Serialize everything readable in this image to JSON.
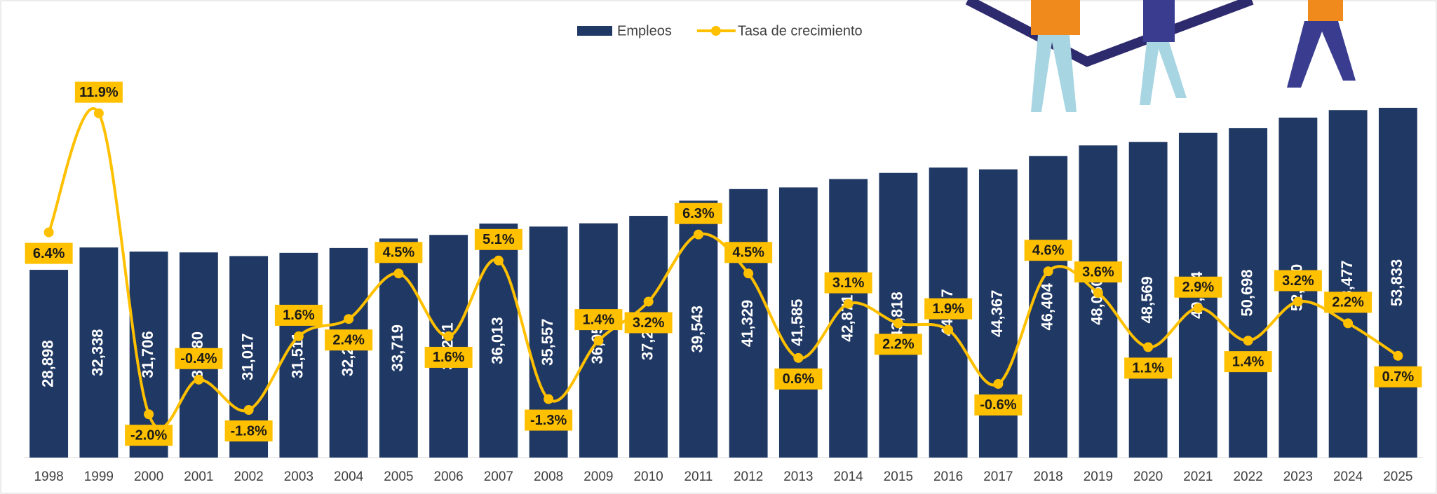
{
  "chart_data": {
    "type": "bar-line",
    "categories": [
      "1998",
      "1999",
      "2000",
      "2001",
      "2002",
      "2003",
      "2004",
      "2005",
      "2006",
      "2007",
      "2008",
      "2009",
      "2010",
      "2011",
      "2012",
      "2013",
      "2014",
      "2015",
      "2016",
      "2017",
      "2018",
      "2019",
      "2020",
      "2021",
      "2022",
      "2023",
      "2024",
      "2025"
    ],
    "series": [
      {
        "name": "Empleos",
        "type": "bar",
        "color": "#1f3864",
        "values": [
          28898,
          32338,
          31706,
          31580,
          31017,
          31511,
          32262,
          33719,
          34271,
          36013,
          35557,
          36058,
          37205,
          39543,
          41329,
          41585,
          42871,
          43818,
          44637,
          44367,
          46404,
          48060,
          48569,
          49974,
          50698,
          52330,
          53477,
          53833
        ],
        "value_labels": [
          "28,898",
          "32,338",
          "31,706",
          "31,580",
          "31,017",
          "31,511",
          "32,262",
          "33,719",
          "34,271",
          "36,013",
          "35,557",
          "36,058",
          "37,205",
          "39,543",
          "41,329",
          "41,585",
          "42,871",
          "43,818",
          "44,637",
          "44,367",
          "46,404",
          "48,060",
          "48,569",
          "49,974",
          "50,698",
          "52,330",
          "53,477",
          "53,833"
        ]
      },
      {
        "name": "Tasa de crecimiento",
        "type": "line",
        "axis": "y2",
        "color": "#ffc000",
        "values": [
          6.4,
          11.9,
          -2.0,
          -0.4,
          -1.8,
          1.6,
          2.4,
          4.5,
          1.6,
          5.1,
          -1.3,
          1.4,
          3.2,
          6.3,
          4.5,
          0.6,
          3.1,
          2.2,
          1.9,
          -0.6,
          4.6,
          3.6,
          1.1,
          2.9,
          1.4,
          3.2,
          2.2,
          0.7
        ],
        "value_labels": [
          "6.4%",
          "11.9%",
          "-2.0%",
          "-0.4%",
          "-1.8%",
          "1.6%",
          "2.4%",
          "4.5%",
          "1.6%",
          "5.1%",
          "-1.3%",
          "1.4%",
          "3.2%",
          "6.3%",
          "4.5%",
          "0.6%",
          "3.1%",
          "2.2%",
          "1.9%",
          "-0.6%",
          "4.6%",
          "3.6%",
          "1.1%",
          "2.9%",
          "1.4%",
          "3.2%",
          "2.2%",
          "0.7%"
        ]
      }
    ],
    "ylim": [
      0,
      70000
    ],
    "y2lim": [
      -4,
      17
    ],
    "legend": "top"
  }
}
